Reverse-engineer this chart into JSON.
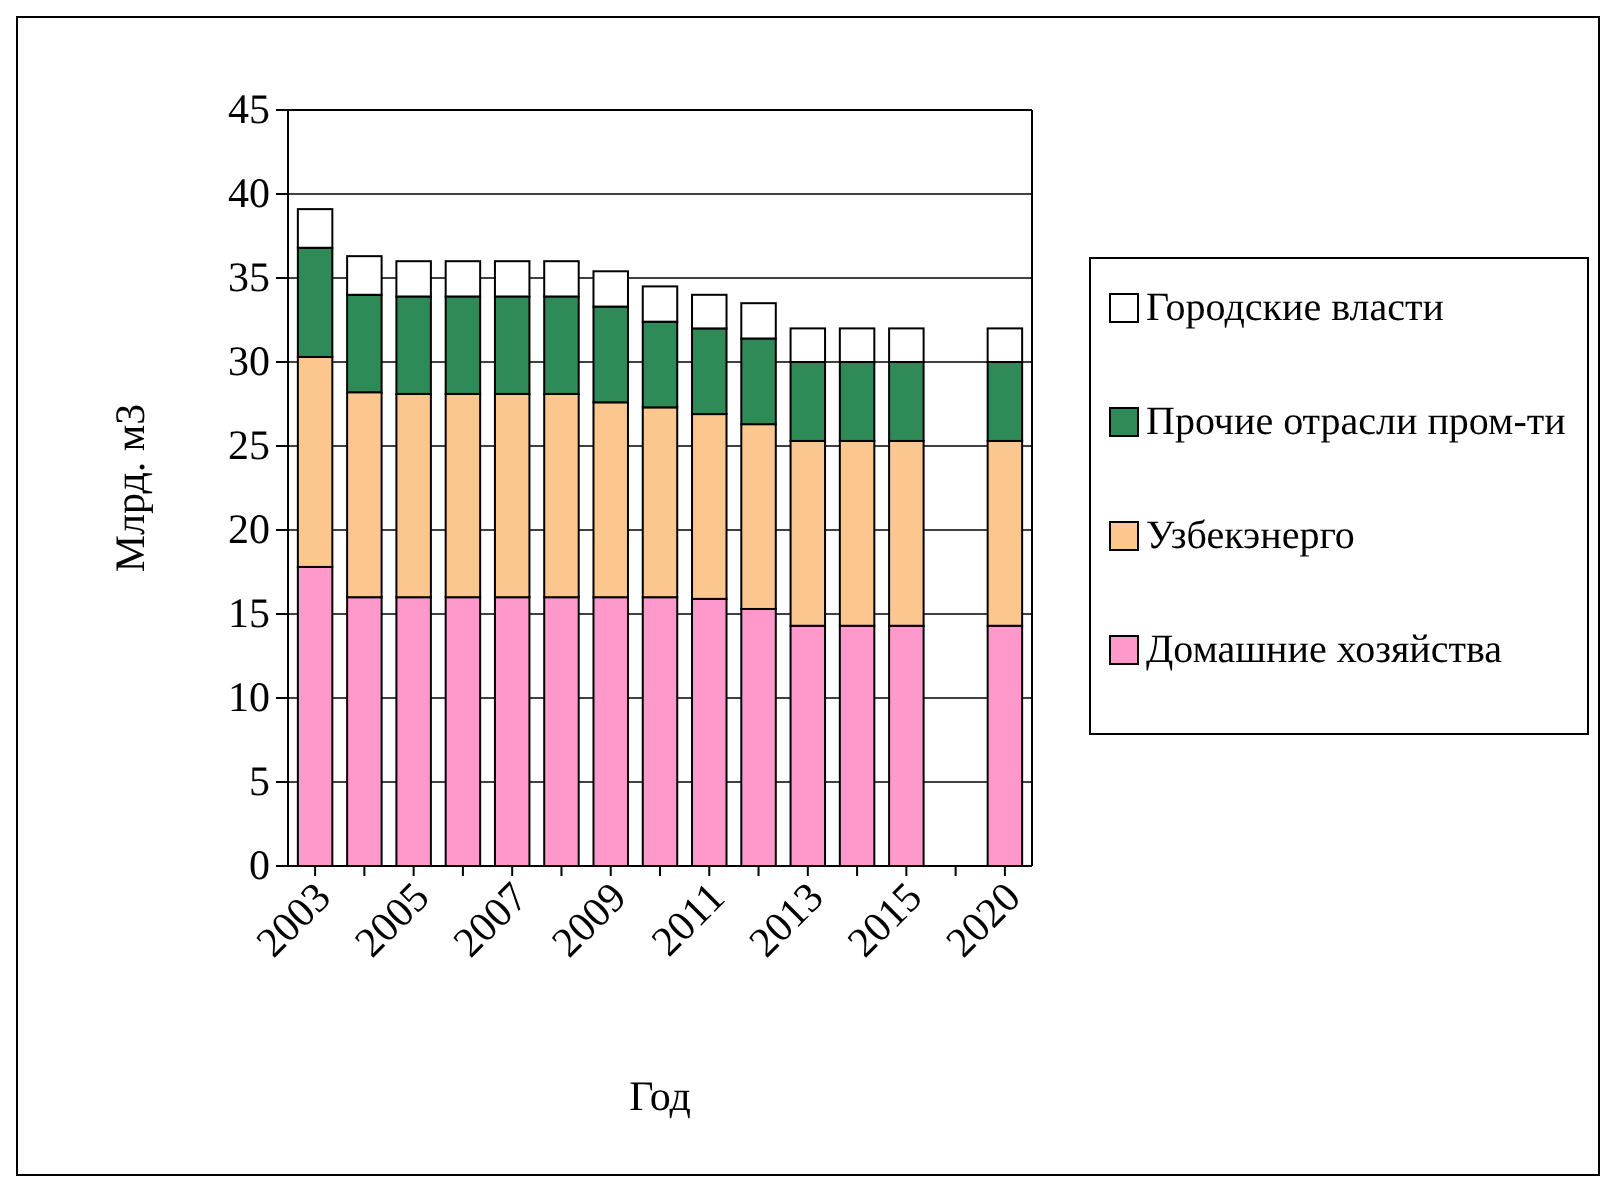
{
  "chart_data": {
    "type": "bar",
    "stacked": true,
    "xlabel": "Год",
    "ylabel": "Млрд. м3",
    "categories": [
      "2003",
      null,
      "2005",
      null,
      "2007",
      null,
      "2009",
      null,
      "2011",
      null,
      "2013",
      null,
      "2015",
      null,
      "2020"
    ],
    "series": [
      {
        "name": "Домашние хозяйства",
        "color": "#ff99cc",
        "values": [
          17.8,
          16,
          16,
          16,
          16,
          16,
          16,
          16,
          15.9,
          15.3,
          14.3,
          14.3,
          14.3,
          null,
          14.3
        ]
      },
      {
        "name": "Узбекэнерго",
        "color": "#fcc68f",
        "values": [
          12.5,
          12.2,
          12.1,
          12.1,
          12.1,
          12.1,
          11.6,
          11.3,
          11,
          11,
          11,
          11,
          11,
          null,
          11
        ]
      },
      {
        "name": "Прочие отрасли пром-ти",
        "color": "#2e8b57",
        "values": [
          6.5,
          5.8,
          5.8,
          5.8,
          5.8,
          5.8,
          5.7,
          5.1,
          5.1,
          5.1,
          4.7,
          4.7,
          4.7,
          null,
          4.7
        ]
      },
      {
        "name": "Городские власти",
        "color": "#ffffff",
        "values": [
          2.3,
          2.3,
          2.1,
          2.1,
          2.1,
          2.1,
          2.1,
          2.1,
          2,
          2.1,
          2,
          2,
          2,
          null,
          2
        ]
      }
    ],
    "ylim": [
      0,
      45
    ],
    "yticks": [
      0,
      5,
      10,
      15,
      20,
      25,
      30,
      35,
      40,
      45
    ],
    "grid": "y",
    "legend": "right"
  }
}
